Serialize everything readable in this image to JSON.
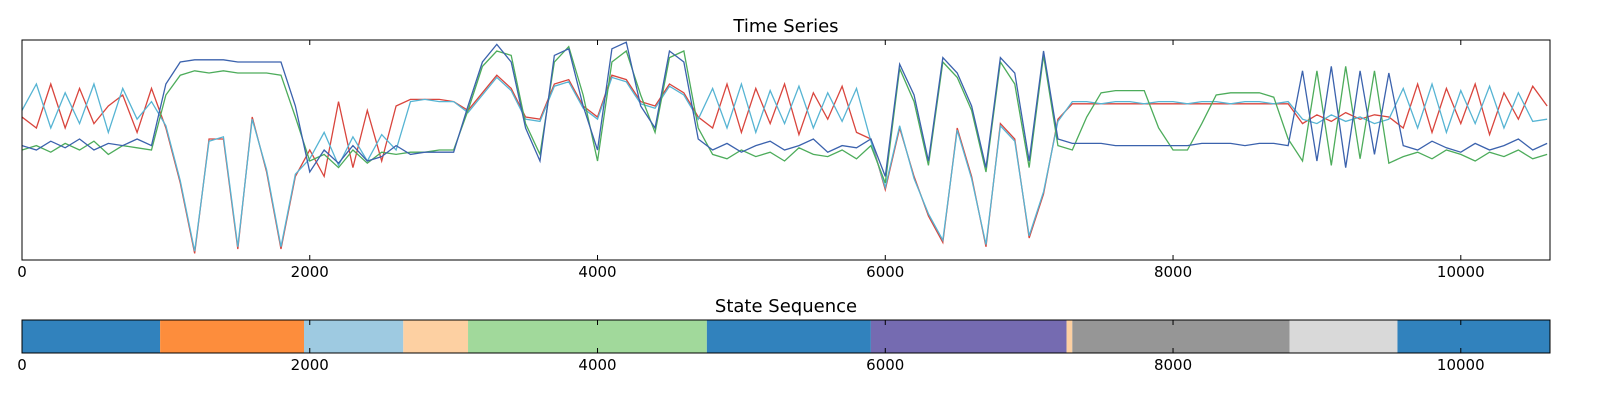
{
  "chart_data": [
    {
      "type": "line",
      "title": "Time Series",
      "x": [
        0,
        100,
        200,
        300,
        400,
        500,
        600,
        700,
        800,
        900,
        1000,
        1100,
        1200,
        1300,
        1400,
        1500,
        1600,
        1700,
        1800,
        1900,
        2000,
        2100,
        2200,
        2300,
        2400,
        2500,
        2600,
        2700,
        2800,
        2900,
        3000,
        3100,
        3200,
        3300,
        3400,
        3500,
        3600,
        3700,
        3800,
        3900,
        4000,
        4100,
        4200,
        4300,
        4400,
        4500,
        4600,
        4700,
        4800,
        4900,
        5000,
        5100,
        5200,
        5300,
        5400,
        5500,
        5600,
        5700,
        5800,
        5900,
        6000,
        6100,
        6200,
        6300,
        6400,
        6500,
        6600,
        6700,
        6800,
        6900,
        7000,
        7100,
        7200,
        7300,
        7400,
        7500,
        7600,
        7700,
        7800,
        7900,
        8000,
        8100,
        8200,
        8300,
        8400,
        8500,
        8600,
        8700,
        8800,
        8900,
        9000,
        9100,
        9200,
        9300,
        9400,
        9500,
        9600,
        9700,
        9800,
        9900,
        10000,
        10100,
        10200,
        10300,
        10400,
        10500,
        10600
      ],
      "series": [
        {
          "color": "#d9453d",
          "values": [
            65,
            60,
            80,
            60,
            78,
            62,
            70,
            75,
            58,
            78,
            60,
            35,
            3,
            55,
            55,
            5,
            65,
            40,
            5,
            38,
            50,
            38,
            72,
            42,
            68,
            45,
            70,
            73,
            73,
            73,
            72,
            68,
            76,
            84,
            78,
            65,
            64,
            80,
            82,
            70,
            65,
            84,
            82,
            72,
            70,
            80,
            76,
            65,
            60,
            80,
            58,
            78,
            62,
            80,
            57,
            76,
            64,
            79,
            58,
            55,
            32,
            60,
            38,
            20,
            8,
            60,
            38,
            6,
            62,
            55,
            10,
            30,
            64,
            71,
            71,
            71,
            71,
            71,
            71,
            71,
            71,
            71,
            71,
            71,
            71,
            71,
            71,
            71,
            71,
            62,
            66,
            63,
            67,
            64,
            66,
            65,
            60,
            80,
            58,
            78,
            62,
            80,
            57,
            76,
            64,
            79,
            70
          ]
        },
        {
          "color": "#56b4d3",
          "values": [
            68,
            80,
            60,
            76,
            62,
            80,
            58,
            78,
            64,
            72,
            61,
            36,
            4,
            54,
            56,
            6,
            64,
            41,
            6,
            39,
            46,
            58,
            43,
            56,
            45,
            57,
            50,
            72,
            73,
            72,
            72,
            67,
            75,
            83,
            77,
            64,
            63,
            79,
            81,
            69,
            64,
            83,
            81,
            71,
            69,
            79,
            75,
            64,
            78,
            60,
            80,
            58,
            77,
            62,
            79,
            60,
            76,
            63,
            78,
            54,
            33,
            61,
            37,
            21,
            9,
            59,
            37,
            7,
            61,
            54,
            11,
            31,
            63,
            72,
            72,
            71,
            72,
            72,
            71,
            72,
            72,
            71,
            72,
            72,
            71,
            72,
            72,
            71,
            72,
            64,
            62,
            66,
            63,
            65,
            62,
            64,
            78,
            60,
            80,
            58,
            77,
            62,
            79,
            60,
            76,
            63,
            64
          ]
        },
        {
          "color": "#4dac5b",
          "values": [
            50,
            52,
            49,
            53,
            50,
            54,
            48,
            52,
            51,
            50,
            75,
            84,
            86,
            85,
            86,
            85,
            85,
            85,
            84,
            65,
            45,
            48,
            42,
            50,
            44,
            49,
            48,
            49,
            49,
            50,
            50,
            68,
            88,
            95,
            93,
            62,
            48,
            90,
            97,
            75,
            45,
            90,
            95,
            75,
            58,
            92,
            95,
            60,
            48,
            46,
            50,
            47,
            49,
            45,
            51,
            48,
            47,
            50,
            46,
            52,
            35,
            87,
            72,
            43,
            90,
            83,
            68,
            40,
            90,
            80,
            42,
            93,
            52,
            50,
            65,
            76,
            77,
            77,
            77,
            60,
            50,
            50,
            62,
            75,
            76,
            76,
            76,
            74,
            55,
            45,
            86,
            43,
            88,
            46,
            86,
            44,
            47,
            49,
            46,
            50,
            48,
            45,
            49,
            47,
            50,
            46,
            48
          ]
        },
        {
          "color": "#3b62ad",
          "values": [
            52,
            50,
            54,
            51,
            55,
            50,
            53,
            52,
            55,
            52,
            80,
            90,
            91,
            91,
            91,
            90,
            90,
            90,
            90,
            70,
            40,
            50,
            44,
            52,
            45,
            47,
            52,
            48,
            49,
            49,
            49,
            70,
            90,
            98,
            90,
            60,
            45,
            93,
            96,
            70,
            50,
            96,
            99,
            70,
            60,
            95,
            90,
            55,
            50,
            53,
            49,
            52,
            54,
            50,
            52,
            55,
            49,
            52,
            51,
            55,
            38,
            89,
            75,
            45,
            92,
            85,
            70,
            42,
            92,
            85,
            45,
            95,
            55,
            53,
            53,
            53,
            52,
            52,
            52,
            52,
            52,
            52,
            53,
            53,
            53,
            52,
            53,
            53,
            52,
            86,
            45,
            88,
            42,
            86,
            48,
            85,
            52,
            50,
            54,
            51,
            49,
            53,
            50,
            52,
            55,
            50,
            53
          ]
        }
      ],
      "xlim": [
        0,
        10620
      ],
      "xticks": [
        0,
        2000,
        4000,
        6000,
        8000,
        10000
      ],
      "ylim": [
        0,
        100
      ]
    },
    {
      "type": "segments",
      "title": "State Sequence",
      "segments": [
        {
          "start": 0,
          "end": 960,
          "color": "#3182bd"
        },
        {
          "start": 960,
          "end": 1960,
          "color": "#fd8d3c"
        },
        {
          "start": 1960,
          "end": 2650,
          "color": "#9ecae1"
        },
        {
          "start": 2650,
          "end": 3100,
          "color": "#fdd0a2"
        },
        {
          "start": 3100,
          "end": 4760,
          "color": "#a1d99b"
        },
        {
          "start": 4760,
          "end": 5900,
          "color": "#3182bd"
        },
        {
          "start": 5900,
          "end": 7260,
          "color": "#756bb1"
        },
        {
          "start": 7260,
          "end": 7300,
          "color": "#fdd0a2"
        },
        {
          "start": 7300,
          "end": 8810,
          "color": "#969696"
        },
        {
          "start": 8810,
          "end": 9560,
          "color": "#d9d9d9"
        },
        {
          "start": 9560,
          "end": 10620,
          "color": "#3182bd"
        }
      ],
      "xlim": [
        0,
        10620
      ],
      "xticks": [
        0,
        2000,
        4000,
        6000,
        8000,
        10000
      ]
    }
  ]
}
